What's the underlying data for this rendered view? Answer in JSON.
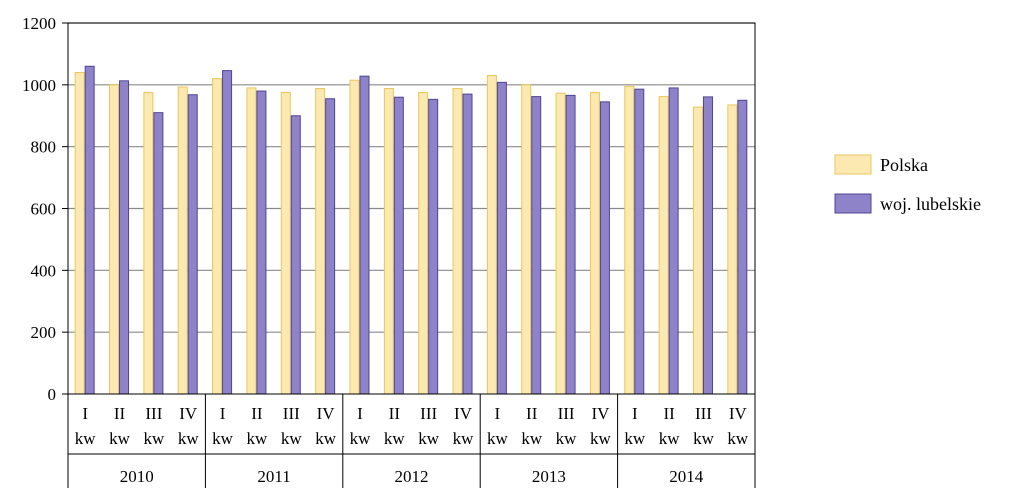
{
  "chart_data": {
    "type": "bar",
    "title": "",
    "xlabel": "",
    "ylabel": "",
    "ylim": [
      0,
      1200
    ],
    "yticks": [
      0,
      200,
      400,
      600,
      800,
      1000,
      1200
    ],
    "grid": true,
    "legend_position": "right",
    "groups": [
      {
        "label": "2010",
        "quarters": [
          {
            "line1": "I",
            "line2": "kw"
          },
          {
            "line1": "II",
            "line2": "kw"
          },
          {
            "line1": "III",
            "line2": "kw"
          },
          {
            "line1": "IV",
            "line2": "kw"
          }
        ]
      },
      {
        "label": "2011",
        "quarters": [
          {
            "line1": "I",
            "line2": "kw"
          },
          {
            "line1": "II",
            "line2": "kw"
          },
          {
            "line1": "III",
            "line2": "kw"
          },
          {
            "line1": "IV",
            "line2": "kw"
          }
        ]
      },
      {
        "label": "2012",
        "quarters": [
          {
            "line1": "I",
            "line2": "kw"
          },
          {
            "line1": "II",
            "line2": "kw"
          },
          {
            "line1": "III",
            "line2": "kw"
          },
          {
            "line1": "IV",
            "line2": "kw"
          }
        ]
      },
      {
        "label": "2013",
        "quarters": [
          {
            "line1": "I",
            "line2": "kw"
          },
          {
            "line1": "II",
            "line2": "kw"
          },
          {
            "line1": "III",
            "line2": "kw"
          },
          {
            "line1": "IV",
            "line2": "kw"
          }
        ]
      },
      {
        "label": "2014",
        "quarters": [
          {
            "line1": "I",
            "line2": "kw"
          },
          {
            "line1": "II",
            "line2": "kw"
          },
          {
            "line1": "III",
            "line2": "kw"
          },
          {
            "line1": "IV",
            "line2": "kw"
          }
        ]
      }
    ],
    "series": [
      {
        "name": "Polska",
        "color": "#FCE9B1",
        "stroke": "#E8C75A",
        "values": [
          1040,
          1000,
          975,
          993,
          1020,
          990,
          975,
          988,
          1015,
          988,
          975,
          988,
          1030,
          1000,
          973,
          975,
          995,
          962,
          928,
          935
        ]
      },
      {
        "name": "woj. lubelskie",
        "color": "#8E83C9",
        "stroke": "#4E4596",
        "values": [
          1060,
          1013,
          910,
          968,
          1046,
          980,
          900,
          955,
          1028,
          960,
          953,
          970,
          1008,
          962,
          966,
          945,
          986,
          990,
          961,
          950
        ]
      }
    ]
  }
}
